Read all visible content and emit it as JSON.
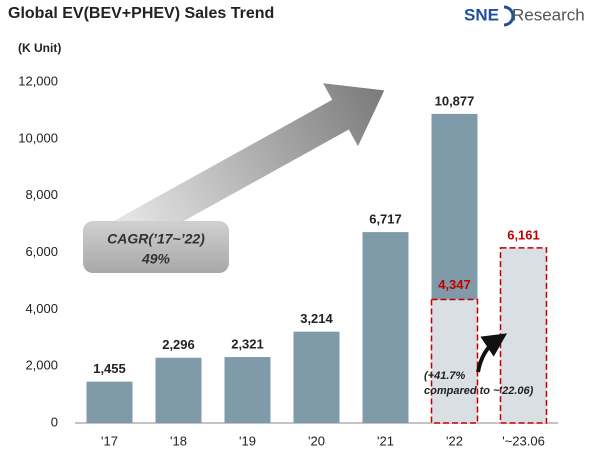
{
  "chart_data": {
    "type": "bar",
    "title": "Global EV(BEV+PHEV)  Sales Trend",
    "logo": {
      "mark": "SNE",
      "text": "Research"
    },
    "y_label": "(K Unit)",
    "categories": [
      "'17",
      "'18",
      "'19",
      "'20",
      "'21",
      "'22",
      "'~23.06"
    ],
    "values": [
      1455,
      2296,
      2321,
      3214,
      6717,
      10877,
      6161
    ],
    "value_labels": [
      "1,455",
      "2,296",
      "2,321",
      "3,214",
      "6,717",
      "10,877",
      "6,161"
    ],
    "h1_2022": {
      "value": 4347,
      "label": "4,347"
    },
    "color": "#7f9aa8",
    "highlight_color": "#c00000",
    "highlight_fill": "#d9dfe3",
    "ylim": [
      0,
      12000
    ],
    "yticks": [
      0,
      {
        "value": 2000,
        "label": "2,000"
      },
      {
        "value": 4000,
        "label": "4,000"
      },
      {
        "value": 6000,
        "label": "6,000"
      },
      {
        "value": 8000,
        "label": "8,000"
      },
      {
        "value": 10000,
        "label": "10,000"
      },
      {
        "value": 12000,
        "label": "12,000"
      }
    ],
    "grid": false,
    "annotations": {
      "cagr": "CAGR(’17~’22)",
      "cagr_value": "49%",
      "growth": "(+41.7%",
      "growth_detail": "compared to ~'22.06)"
    }
  }
}
